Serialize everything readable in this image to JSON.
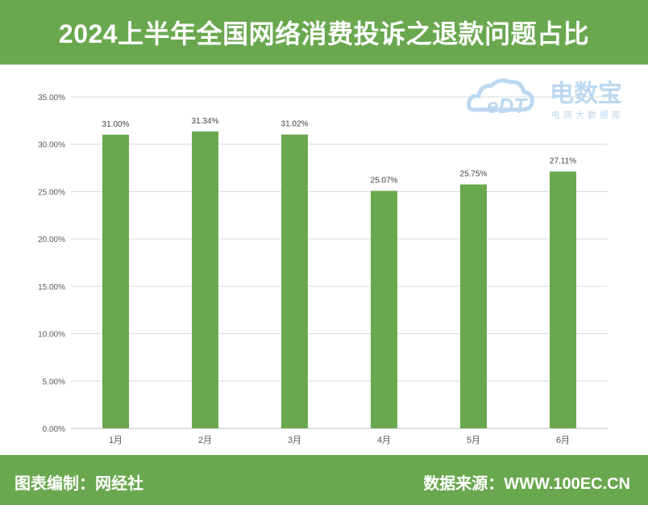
{
  "header": {
    "title": "2024上半年全国网络消费投诉之退款问题占比"
  },
  "footer": {
    "left": "图表编制：网经社",
    "right": "数据来源：WWW.100EC.CN"
  },
  "watermark": {
    "brand_latin": "eDT",
    "brand_cn": "电数宝",
    "tagline": "电商大数据库"
  },
  "colors": {
    "accent": "#6aa84f",
    "bar": "#6aa84f",
    "grid": "#d9d9d9"
  },
  "chart_data": {
    "type": "bar",
    "categories": [
      "1月",
      "2月",
      "3月",
      "4月",
      "5月",
      "6月"
    ],
    "values": [
      31.0,
      31.34,
      31.02,
      25.07,
      25.75,
      27.11
    ],
    "value_labels": [
      "31.00%",
      "31.34%",
      "31.02%",
      "25.07%",
      "25.75%",
      "27.11%"
    ],
    "yticks": [
      "0.00%",
      "5.00%",
      "10.00%",
      "15.00%",
      "20.00%",
      "25.00%",
      "30.00%",
      "35.00%"
    ],
    "ylim": [
      0,
      35
    ],
    "grid": true,
    "title": "",
    "xlabel": "",
    "ylabel": ""
  }
}
